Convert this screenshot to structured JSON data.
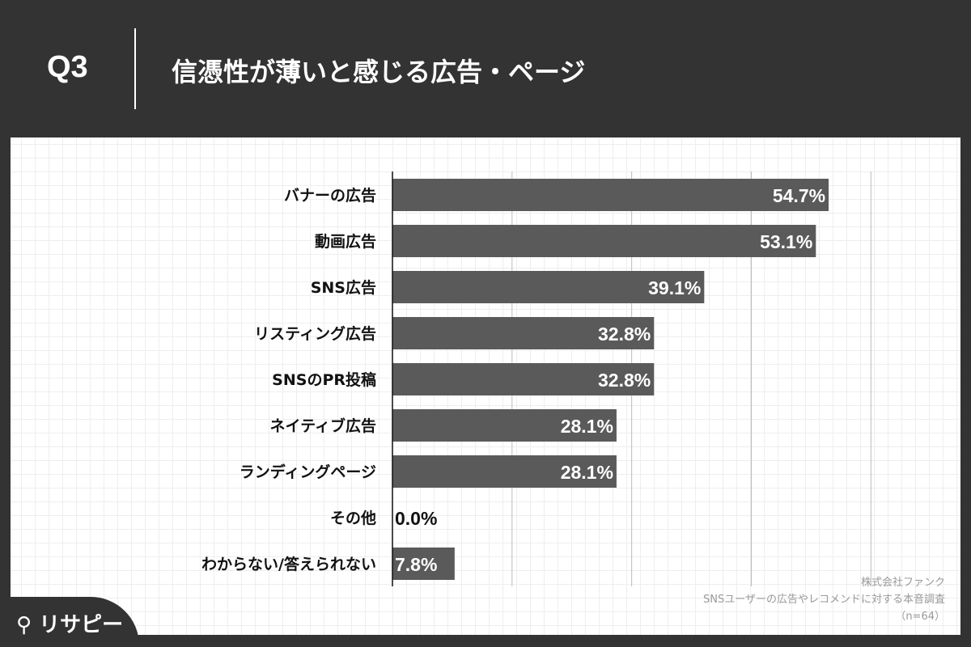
{
  "header": {
    "question_number": "Q3",
    "title": "信憑性が薄いと感じる広告・ページ"
  },
  "chart_data": {
    "type": "bar",
    "orientation": "horizontal",
    "categories": [
      "バナーの広告",
      "動画広告",
      "SNS広告",
      "リスティング広告",
      "SNSのPR投稿",
      "ネイティブ広告",
      "ランディングページ",
      "その他",
      "わからない/答えられない"
    ],
    "values": [
      54.7,
      53.1,
      39.1,
      32.8,
      32.8,
      28.1,
      28.1,
      0.0,
      7.8
    ],
    "value_labels": [
      "54.7%",
      "53.1%",
      "39.1%",
      "32.8%",
      "32.8%",
      "28.1%",
      "28.1%",
      "0.0%",
      "7.8%"
    ],
    "xlim": [
      0,
      75
    ],
    "gridlines": [
      15,
      30,
      45,
      60
    ],
    "grid": true,
    "bar_color": "#5a5a5a"
  },
  "footer": {
    "company": "株式会社ファンク",
    "survey": "SNSユーザーの広告やレコメンドに対する本音調査",
    "sample": "（n=64）"
  },
  "logo": {
    "text": "リサピー"
  }
}
